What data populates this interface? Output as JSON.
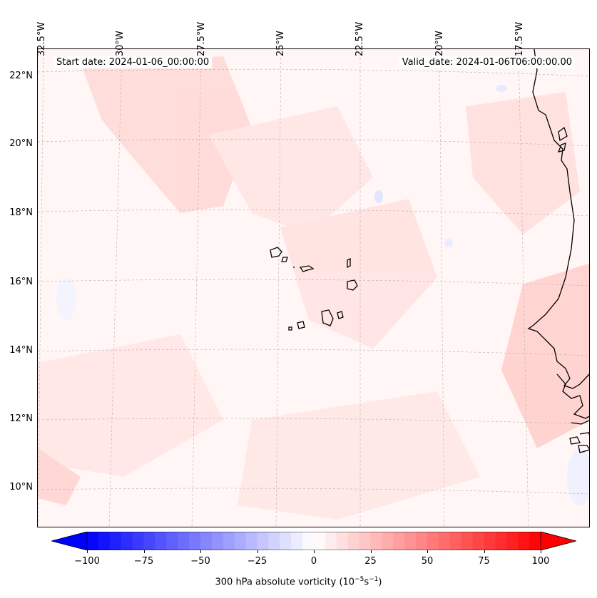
{
  "header": {
    "start_date": "Start date: 2024-01-06_00:00:00",
    "valid_date": "Valid_date: 2024-01-06T06:00:00.00"
  },
  "longitude_labels": [
    "32.5°W",
    "30°W",
    "27.5°W",
    "25°W",
    "22.5°W",
    "20°W",
    "17.5°W"
  ],
  "latitude_labels": [
    "22°N",
    "20°N",
    "18°N",
    "16°N",
    "14°N",
    "12°N",
    "10°N"
  ],
  "colorbar": {
    "variable": "300 hPa absolute vorticity",
    "unit_base": "10",
    "unit_exp1": "−5",
    "unit_mid": "s",
    "unit_exp2": "−1",
    "min": -100,
    "max": 100,
    "ticks": [
      "−100",
      "−75",
      "−50",
      "−25",
      "0",
      "25",
      "50",
      "75",
      "100"
    ],
    "color_low": "#0000ff",
    "color_mid": "#ffffff",
    "color_high": "#ff0000",
    "extend": "both"
  },
  "colors": {
    "coastline": "#000000",
    "gridline": "#b0b0b0",
    "background_field": "#fff6f5",
    "positive_anomaly": "#ffd6d4",
    "negative_anomaly": "#eef0ff"
  }
}
